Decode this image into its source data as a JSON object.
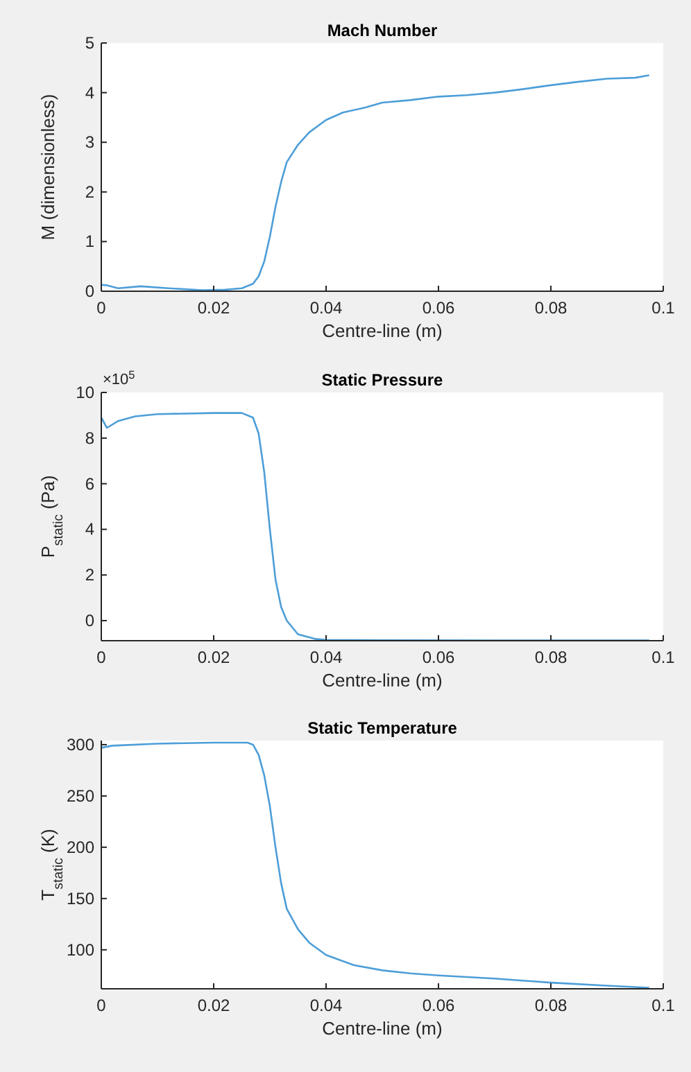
{
  "chart_data": [
    {
      "type": "line",
      "title": "Mach Number",
      "xlabel": "Centre-line (m)",
      "ylabel": "M (dimensionless)",
      "xlim": [
        0,
        0.1
      ],
      "xticks": [
        0,
        0.02,
        0.04,
        0.06,
        0.08,
        0.1
      ],
      "ylim": [
        0,
        5
      ],
      "yticks": [
        0,
        1,
        2,
        3,
        4,
        5
      ],
      "grid": false,
      "marker": "none",
      "line_style": "solid",
      "series": [
        {
          "color": "#4d9ed8",
          "x": [
            0,
            0.001,
            0.003,
            0.007,
            0.012,
            0.018,
            0.022,
            0.025,
            0.027,
            0.028,
            0.029,
            0.03,
            0.031,
            0.032,
            0.033,
            0.035,
            0.037,
            0.04,
            0.043,
            0.047,
            0.05,
            0.055,
            0.06,
            0.065,
            0.07,
            0.075,
            0.08,
            0.085,
            0.09,
            0.095,
            0.0975
          ],
          "values": [
            0.13,
            0.12,
            0.06,
            0.1,
            0.06,
            0.02,
            0.03,
            0.06,
            0.15,
            0.3,
            0.6,
            1.1,
            1.7,
            2.2,
            2.6,
            2.95,
            3.2,
            3.45,
            3.6,
            3.7,
            3.8,
            3.85,
            3.92,
            3.95,
            4.0,
            4.07,
            4.15,
            4.22,
            4.28,
            4.3,
            4.35
          ]
        }
      ]
    },
    {
      "type": "line",
      "title": "Static Pressure",
      "xlabel": "Centre-line (m)",
      "ylabel": "P$_{static}$ (Pa)",
      "annotations": [
        "×10$^{5}$"
      ],
      "xlim": [
        0,
        0.1
      ],
      "xticks": [
        0,
        0.02,
        0.04,
        0.06,
        0.08,
        0.1
      ],
      "ylim": [
        -0.88,
        10
      ],
      "yticks": [
        0,
        2,
        4,
        6,
        8,
        10
      ],
      "grid": false,
      "marker": "none",
      "line_style": "solid",
      "series": [
        {
          "color": "#4d9ed8",
          "x": [
            0,
            0.001,
            0.003,
            0.006,
            0.01,
            0.02,
            0.025,
            0.027,
            0.028,
            0.029,
            0.03,
            0.031,
            0.032,
            0.033,
            0.035,
            0.038,
            0.04,
            0.05,
            0.07,
            0.0975
          ],
          "values": [
            8.9,
            8.45,
            8.75,
            8.95,
            9.05,
            9.1,
            9.1,
            8.9,
            8.2,
            6.5,
            4.0,
            1.8,
            0.6,
            0,
            -0.6,
            -0.8,
            -0.84,
            -0.86,
            -0.87,
            -0.87
          ]
        }
      ]
    },
    {
      "type": "line",
      "title": "Static Temperature",
      "xlabel": "Centre-line (m)",
      "ylabel": "T$_{static}$ (K)",
      "xlim": [
        0,
        0.1
      ],
      "xticks": [
        0,
        0.02,
        0.04,
        0.06,
        0.08,
        0.1
      ],
      "ylim": [
        62,
        304
      ],
      "yticks": [
        100,
        150,
        200,
        250,
        300
      ],
      "grid": false,
      "marker": "none",
      "line_style": "solid",
      "series": [
        {
          "color": "#4d9ed8",
          "x": [
            0,
            0.002,
            0.01,
            0.02,
            0.026,
            0.027,
            0.028,
            0.029,
            0.03,
            0.031,
            0.032,
            0.033,
            0.035,
            0.037,
            0.04,
            0.045,
            0.05,
            0.055,
            0.06,
            0.07,
            0.08,
            0.09,
            0.0975
          ],
          "values": [
            297,
            299,
            301,
            302,
            302,
            300,
            290,
            270,
            240,
            200,
            165,
            140,
            120,
            107,
            95,
            85,
            80,
            77,
            75,
            72,
            68,
            65,
            63
          ]
        }
      ]
    }
  ]
}
